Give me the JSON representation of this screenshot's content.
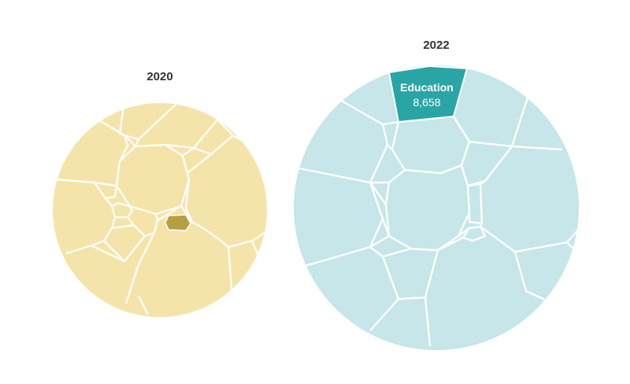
{
  "chart_data": [
    {
      "type": "voronoi-treemap",
      "title": "2020",
      "colors": {
        "fill": "#f5e4aa",
        "highlight": "#b5a041",
        "line": "#ffffff"
      }
    },
    {
      "type": "voronoi-treemap",
      "title": "2022",
      "colors": {
        "fill": "#c6e6e9",
        "highlight": "#2aa5a5",
        "line": "#ffffff"
      },
      "highlight": {
        "label": "Education",
        "value": "8,658"
      }
    }
  ]
}
